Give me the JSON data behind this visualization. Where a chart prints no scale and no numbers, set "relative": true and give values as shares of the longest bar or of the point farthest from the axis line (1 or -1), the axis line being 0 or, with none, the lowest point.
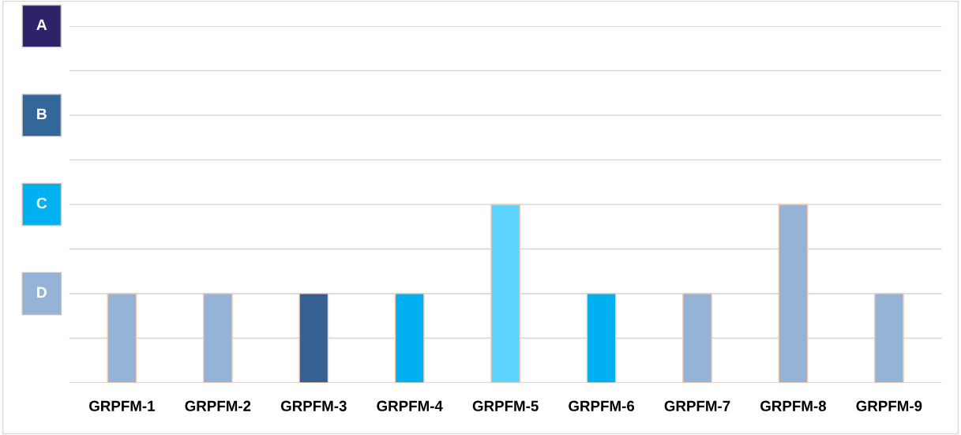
{
  "chart_data": {
    "type": "bar",
    "relative": true,
    "categories": [
      "GRPFM-1",
      "GRPFM-2",
      "GRPFM-3",
      "GRPFM-4",
      "GRPFM-5",
      "GRPFM-6",
      "GRPFM-7",
      "GRPFM-8",
      "GRPFM-9"
    ],
    "values": [
      0.5,
      0.5,
      0.5,
      0.5,
      1,
      0.5,
      0.5,
      1,
      0.5
    ],
    "colors": [
      "#95b3d7",
      "#95b3d7",
      "#366092",
      "#00b0f0",
      "#5dd5ff",
      "#00b0f0",
      "#95b3d7",
      "#95b3d7",
      "#95b3d7"
    ],
    "annotations": [
      "A",
      "B",
      "C",
      "D"
    ],
    "grid": "y"
  }
}
